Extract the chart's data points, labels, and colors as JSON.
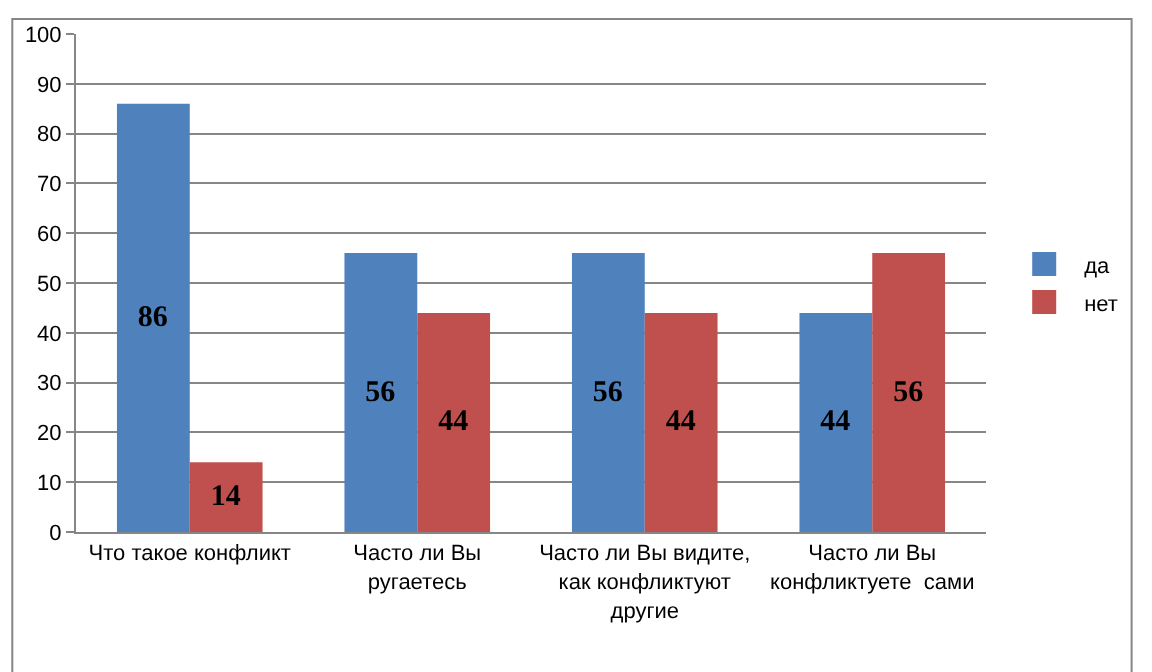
{
  "chart_data": {
    "type": "bar",
    "categories": [
      "Что такое конфликт",
      "Часто ли Вы ругаетесь",
      "Часто ли Вы видите, как конфликтуют другие",
      "Часто ли Вы конфликтуете  сами"
    ],
    "series": [
      {
        "name": "да",
        "color": "#4f81bd",
        "values": [
          86,
          56,
          56,
          44
        ]
      },
      {
        "name": "нет",
        "color": "#c0504d",
        "values": [
          14,
          44,
          44,
          56
        ]
      }
    ],
    "ylim": [
      0,
      100
    ],
    "yticks": [
      0,
      10,
      20,
      30,
      40,
      50,
      60,
      70,
      80,
      90,
      100
    ],
    "grid": "y",
    "legend": "right",
    "data_labels": true
  }
}
